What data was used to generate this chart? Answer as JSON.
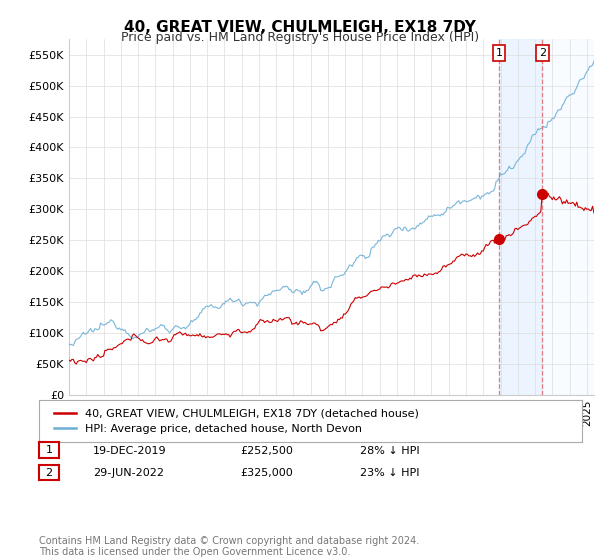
{
  "title": "40, GREAT VIEW, CHULMLEIGH, EX18 7DY",
  "subtitle": "Price paid vs. HM Land Registry's House Price Index (HPI)",
  "ylim": [
    0,
    575000
  ],
  "yticks": [
    0,
    50000,
    100000,
    150000,
    200000,
    250000,
    300000,
    350000,
    400000,
    450000,
    500000,
    550000
  ],
  "ytick_labels": [
    "£0",
    "£50K",
    "£100K",
    "£150K",
    "£200K",
    "£250K",
    "£300K",
    "£350K",
    "£400K",
    "£450K",
    "£500K",
    "£550K"
  ],
  "background_color": "#ffffff",
  "grid_color": "#dddddd",
  "hpi_color": "#6baed6",
  "price_color": "#cc0000",
  "marker1_idx": 299,
  "marker2_idx": 329,
  "marker1_price": 252500,
  "marker2_price": 325000,
  "shade_color": "#ddeeff",
  "shade_alpha": 0.55,
  "vline_color": "#e06060",
  "legend_price_label": "40, GREAT VIEW, CHULMLEIGH, EX18 7DY (detached house)",
  "legend_hpi_label": "HPI: Average price, detached house, North Devon",
  "table_row1": [
    "1",
    "19-DEC-2019",
    "£252,500",
    "28% ↓ HPI"
  ],
  "table_row2": [
    "2",
    "29-JUN-2022",
    "£325,000",
    "23% ↓ HPI"
  ],
  "footer": "Contains HM Land Registry data © Crown copyright and database right 2024.\nThis data is licensed under the Open Government Licence v3.0.",
  "title_fontsize": 11,
  "subtitle_fontsize": 9,
  "tick_fontsize": 8,
  "legend_fontsize": 8,
  "table_fontsize": 8,
  "footer_fontsize": 7
}
